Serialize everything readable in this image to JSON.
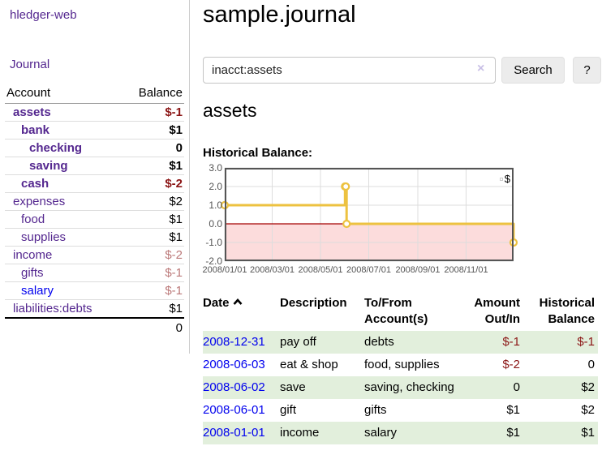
{
  "sidebar": {
    "brand": "hledger-web",
    "journal_label": "Journal",
    "accounts_table": {
      "headers": {
        "account": "Account",
        "balance": "Balance"
      },
      "rows": [
        {
          "name": "assets",
          "balance": "$-1",
          "indent": 1,
          "bold": true,
          "neg": "dark"
        },
        {
          "name": "bank",
          "balance": "$1",
          "indent": 2,
          "bold": true,
          "neg": "none"
        },
        {
          "name": "checking",
          "balance": "0",
          "indent": 3,
          "bold": true,
          "neg": "none"
        },
        {
          "name": "saving",
          "balance": "$1",
          "indent": 3,
          "bold": true,
          "neg": "none"
        },
        {
          "name": "cash",
          "balance": "$-2",
          "indent": 2,
          "bold": true,
          "neg": "dark"
        },
        {
          "name": "expenses",
          "balance": "$2",
          "indent": 1,
          "bold": false,
          "neg": "none"
        },
        {
          "name": "food",
          "balance": "$1",
          "indent": 2,
          "bold": false,
          "neg": "none"
        },
        {
          "name": "supplies",
          "balance": "$1",
          "indent": 2,
          "bold": false,
          "neg": "none"
        },
        {
          "name": "income",
          "balance": "$-2",
          "indent": 1,
          "bold": false,
          "neg": "light"
        },
        {
          "name": "gifts",
          "balance": "$-1",
          "indent": 2,
          "bold": false,
          "neg": "light"
        },
        {
          "name": "salary",
          "balance": "$-1",
          "indent": 2,
          "bold": false,
          "neg": "light",
          "link_style": "blue"
        },
        {
          "name": "liabilities:debts",
          "balance": "$1",
          "indent": 1,
          "bold": false,
          "neg": "none"
        }
      ],
      "total": "0"
    }
  },
  "main": {
    "title": "sample.journal",
    "search": {
      "value": "inacct:assets",
      "clear_icon": "×",
      "button": "Search",
      "help": "?"
    },
    "account_heading": "assets",
    "chart_label": "Historical Balance:"
  },
  "chart_data": {
    "type": "line",
    "steps": true,
    "series": [
      {
        "name": "$",
        "color": "#edc240",
        "points": [
          {
            "date": "2008-01-01",
            "value": 1
          },
          {
            "date": "2008-06-01",
            "value": 2
          },
          {
            "date": "2008-06-02",
            "value": 2
          },
          {
            "date": "2008-06-03",
            "value": 0
          },
          {
            "date": "2008-12-31",
            "value": -1
          }
        ]
      }
    ],
    "x_ticks": [
      "2008/01/01",
      "2008/03/01",
      "2008/05/01",
      "2008/07/01",
      "2008/09/01",
      "2008/11/01"
    ],
    "y_ticks": [
      3.0,
      2.0,
      1.0,
      0.0,
      -1.0,
      -2.0
    ],
    "ylim": [
      -2,
      3
    ],
    "xlim": [
      "2008-01-01",
      "2008-12-31"
    ],
    "grid": true,
    "legend_position": "top-right",
    "legend": {
      "label": "$",
      "swatch_color": "#edc240"
    },
    "colors": {
      "line": "#edc240",
      "marker_fill": "#ffffff",
      "negative_region": "#fcdcdc",
      "zero_line": "#a40000",
      "gridline": "#dddddd",
      "border": "#555555",
      "tick_text": "#545454"
    }
  },
  "register_table": {
    "headers": {
      "date": "Date",
      "sort_icon": "chevron-up",
      "description": "Description",
      "account_line1": "To/From",
      "account_line2": "Account(s)",
      "amount_line1": "Amount",
      "amount_line2": "Out/In",
      "balance_line1": "Historical",
      "balance_line2": "Balance"
    },
    "rows": [
      {
        "date": "2008-12-31",
        "description": "pay off",
        "accounts": "debts",
        "amount": "$-1",
        "amount_neg": true,
        "balance": "$-1",
        "balance_neg": true
      },
      {
        "date": "2008-06-03",
        "description": "eat & shop",
        "accounts": "food, supplies",
        "amount": "$-2",
        "amount_neg": true,
        "balance": "0",
        "balance_neg": false
      },
      {
        "date": "2008-06-02",
        "description": "save",
        "accounts": "saving, checking",
        "amount": "0",
        "amount_neg": false,
        "balance": "$2",
        "balance_neg": false
      },
      {
        "date": "2008-06-01",
        "description": "gift",
        "accounts": "gifts",
        "amount": "$1",
        "amount_neg": false,
        "balance": "$2",
        "balance_neg": false
      },
      {
        "date": "2008-01-01",
        "description": "income",
        "accounts": "salary",
        "amount": "$1",
        "amount_neg": false,
        "balance": "$1",
        "balance_neg": false
      }
    ]
  }
}
